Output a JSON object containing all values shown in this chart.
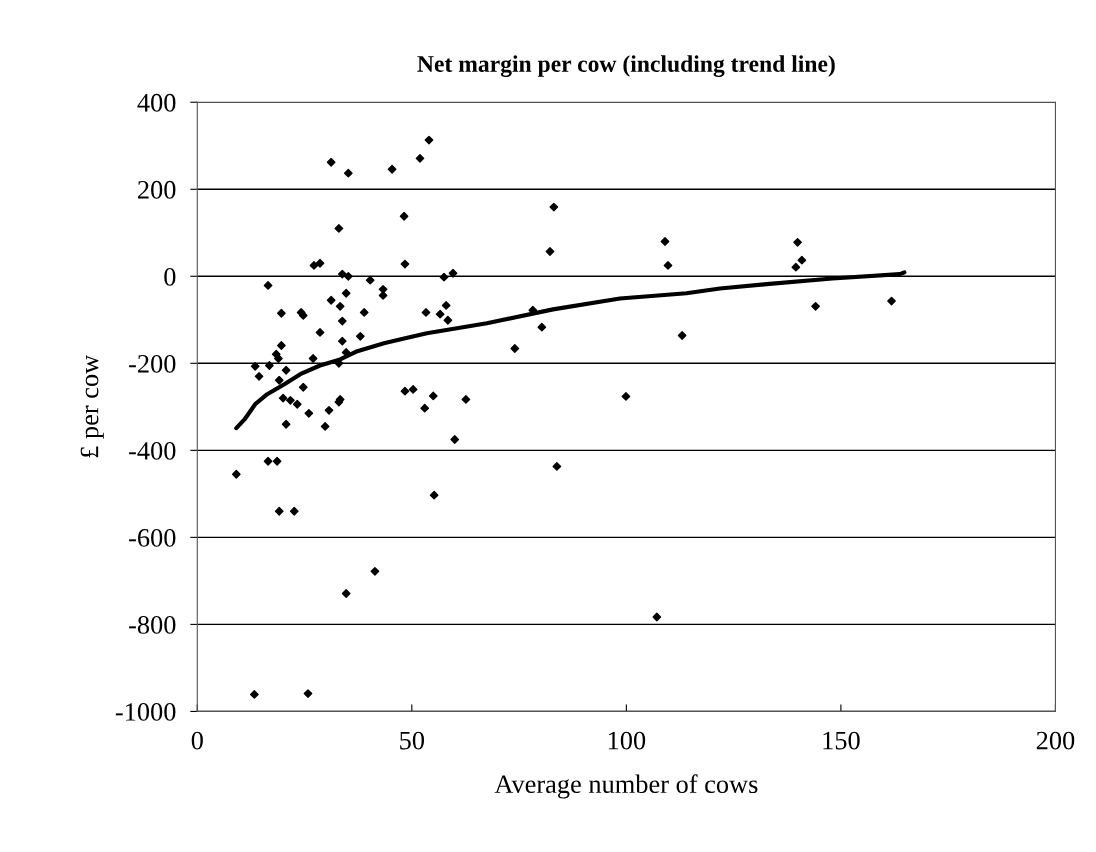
{
  "chart_data": {
    "type": "scatter",
    "title": "Net margin per cow (including trend line)",
    "xlabel": "Average number of cows",
    "ylabel": "£ per cow",
    "xlim": [
      0,
      200
    ],
    "xticks": [
      0,
      50,
      100,
      150,
      200
    ],
    "ylim": [
      -1000,
      400
    ],
    "yticks": [
      -1000,
      -800,
      -600,
      -400,
      -200,
      0,
      200,
      400
    ],
    "grid": "y",
    "legend": false,
    "series": [
      {
        "color": "#000000",
        "marker": "diamond",
        "x": [
          13.3,
          25.8,
          9.1,
          16.5,
          18.6,
          19.1,
          22.6,
          34.7,
          41.4,
          20.7,
          29.8,
          31.2,
          35.2,
          45.4,
          51.9,
          54,
          48.2,
          33,
          27.2,
          28.6,
          33.8,
          35.2,
          40.3,
          43.3,
          43.3,
          16.5,
          34.7,
          31.2,
          33.3,
          19.6,
          24.2,
          24.7,
          33.8,
          38.9,
          53.3,
          28.6,
          38,
          33.8,
          19.6,
          18.4,
          18.9,
          34.7,
          27,
          13.5,
          16.8,
          20.7,
          33,
          14.4,
          19.1,
          24.7,
          20,
          21.7,
          23.3,
          26,
          30.7,
          33,
          33.3,
          48.4,
          50.3,
          53,
          48.4,
          83.1,
          82.2,
          109,
          109.7,
          57.5,
          59.6,
          56.6,
          58,
          58.4,
          78.2,
          80.3,
          74,
          113,
          55,
          62.6,
          99.9,
          60,
          83.8,
          55.2,
          107.1,
          139.9,
          140.9,
          139.5,
          144.1,
          161.8
        ],
        "values": [
          -961,
          -959,
          -455,
          -425,
          -425,
          -540,
          -540,
          -729,
          -678,
          -340,
          -345,
          262,
          237,
          246,
          271,
          313,
          138,
          110,
          25,
          30,
          5,
          0,
          -9,
          -30,
          -44,
          -21,
          -39,
          -55,
          -69,
          -85,
          -83,
          -90,
          -103,
          -83,
          -83,
          -129,
          -138,
          -149,
          -159,
          -179,
          -189,
          -175,
          -189,
          -207,
          -205,
          -216,
          -200,
          -230,
          -239,
          -255,
          -280,
          -285,
          -294,
          -315,
          -308,
          -289,
          -283,
          -264,
          -260,
          -303,
          28,
          159,
          57,
          80,
          25,
          -2,
          7,
          -87,
          -67,
          -101,
          -78,
          -117,
          -166,
          -136,
          -275,
          -283,
          -276,
          -375,
          -437,
          -503,
          -783,
          78,
          37,
          21,
          -69,
          -57
        ]
      },
      {
        "type": "line",
        "color": "#000000",
        "marker": "none",
        "line_style": "solid",
        "x": [
          9.1,
          11,
          13.5,
          16.3,
          20.3,
          24,
          28.6,
          33.3,
          37.3,
          43.5,
          48.2,
          53.5,
          67.5,
          82.9,
          98.5,
          114,
          121.8,
          132.7,
          148,
          163.7,
          164.8
        ],
        "values": [
          -349,
          -329,
          -294,
          -271,
          -248,
          -225,
          -205,
          -191,
          -172,
          -154,
          -143,
          -131,
          -108,
          -76,
          -51,
          -39,
          -28,
          -18,
          -5,
          5,
          9
        ]
      }
    ]
  }
}
